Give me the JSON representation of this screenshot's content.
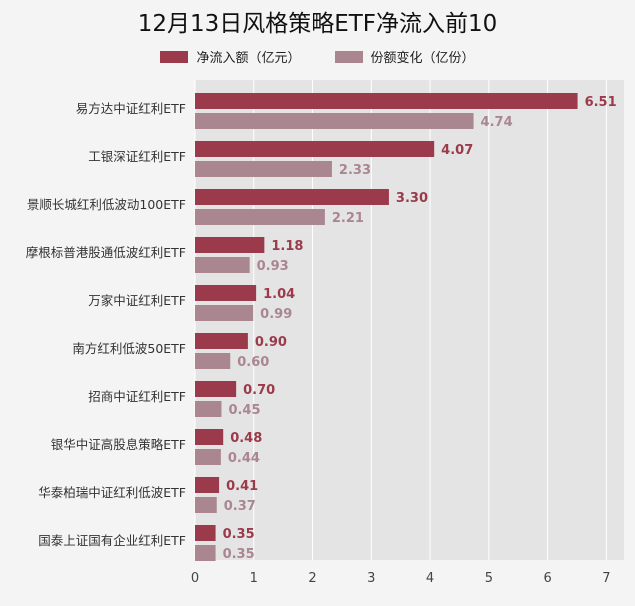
{
  "chart_data": {
    "type": "bar",
    "orientation": "horizontal",
    "title": "12月13日风格策略ETF净流入前10",
    "categories": [
      "易方达中证红利ETF",
      "工银深证红利ETF",
      "景顺长城红利低波动100ETF",
      "摩根标普港股通低波红利ETF",
      "万家中证红利ETF",
      "南方红利低波50ETF",
      "招商中证红利ETF",
      "银华中证高股息策略ETF",
      "华泰柏瑞中证红利低波ETF",
      "国泰上证国有企业红利ETF"
    ],
    "series": [
      {
        "name": "净流入额（亿元）",
        "color": "#9b3a4b",
        "values": [
          6.51,
          4.07,
          3.3,
          1.18,
          1.04,
          0.9,
          0.7,
          0.48,
          0.41,
          0.35
        ],
        "labels": [
          "6.51",
          "4.07",
          "3.30",
          "1.18",
          "1.04",
          "0.90",
          "0.70",
          "0.48",
          "0.41",
          "0.35"
        ]
      },
      {
        "name": "份额变化（亿份）",
        "color": "#aa8690",
        "values": [
          4.74,
          2.33,
          2.21,
          0.93,
          0.99,
          0.6,
          0.45,
          0.44,
          0.37,
          0.35
        ],
        "labels": [
          "4.74",
          "2.33",
          "2.21",
          "0.93",
          "0.99",
          "0.60",
          "0.45",
          "0.44",
          "0.37",
          "0.35"
        ]
      }
    ],
    "xlim": [
      0,
      7.3
    ],
    "xticks": [
      "0",
      "1",
      "2",
      "3",
      "4",
      "5",
      "6",
      "7"
    ],
    "grid": true,
    "legend_position": "top"
  }
}
